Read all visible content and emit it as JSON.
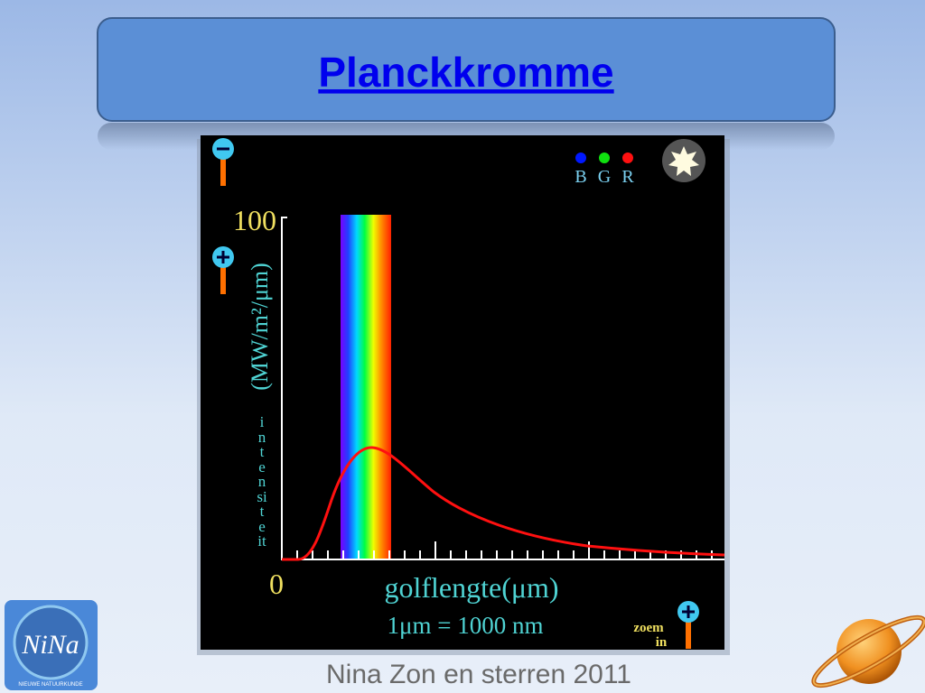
{
  "header": {
    "title": "Planckkromme"
  },
  "figure": {
    "y_max_label": "100",
    "y_min_label": "0",
    "y_unit": "(MW/m²/μm)",
    "y_name": "intensiteit",
    "x_name": "golflengte(μm)",
    "conversion": "1μm  =  1000 nm",
    "zoom_label": [
      "zoem",
      "in"
    ],
    "color_filters": [
      "B",
      "G",
      "R"
    ]
  },
  "logo": {
    "name": "NiNa",
    "subtitle": "NIEUWE NATUURKUNDE"
  },
  "footer": {
    "text": "Nina Zon en sterren 2011"
  }
}
